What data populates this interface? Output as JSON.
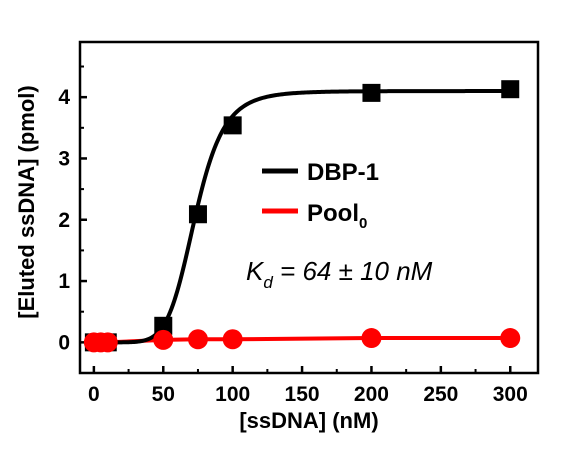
{
  "chart_data": {
    "type": "scatter",
    "xlabel": "[ssDNA] (nM)",
    "ylabel": "[Eluted ssDNA] (pmol)",
    "xlim": [
      -10,
      320
    ],
    "ylim": [
      -0.5,
      4.9
    ],
    "xticks": [
      0,
      50,
      100,
      150,
      200,
      250,
      300
    ],
    "yticks": [
      0,
      1,
      2,
      3,
      4
    ],
    "grid": false,
    "legend_position": "center-right",
    "series": [
      {
        "name": "DBP-1",
        "color": "#000000",
        "marker": "square",
        "fit": "sigmoidal",
        "points": [
          {
            "x": 0,
            "y": 0.0
          },
          {
            "x": 5,
            "y": 0.0
          },
          {
            "x": 10,
            "y": 0.0
          },
          {
            "x": 50,
            "y": 0.27
          },
          {
            "x": 75,
            "y": 2.09
          },
          {
            "x": 100,
            "y": 3.54
          },
          {
            "x": 200,
            "y": 4.07
          },
          {
            "x": 300,
            "y": 4.13
          }
        ],
        "fit_params": {
          "ymax": 4.1,
          "x_half": 73,
          "n": 7
        }
      },
      {
        "name": "Pool",
        "name_subscript": "0",
        "color": "#ff0000",
        "marker": "circle",
        "fit": "linear",
        "points": [
          {
            "x": 0,
            "y": 0.0
          },
          {
            "x": 5,
            "y": 0.0
          },
          {
            "x": 10,
            "y": 0.0
          },
          {
            "x": 50,
            "y": 0.04
          },
          {
            "x": 75,
            "y": 0.05
          },
          {
            "x": 100,
            "y": 0.05
          },
          {
            "x": 200,
            "y": 0.07
          },
          {
            "x": 300,
            "y": 0.07
          }
        ]
      }
    ],
    "annotation": {
      "symbol": "K",
      "subscript": "d",
      "text": " = 64 ± 10 nM"
    }
  }
}
